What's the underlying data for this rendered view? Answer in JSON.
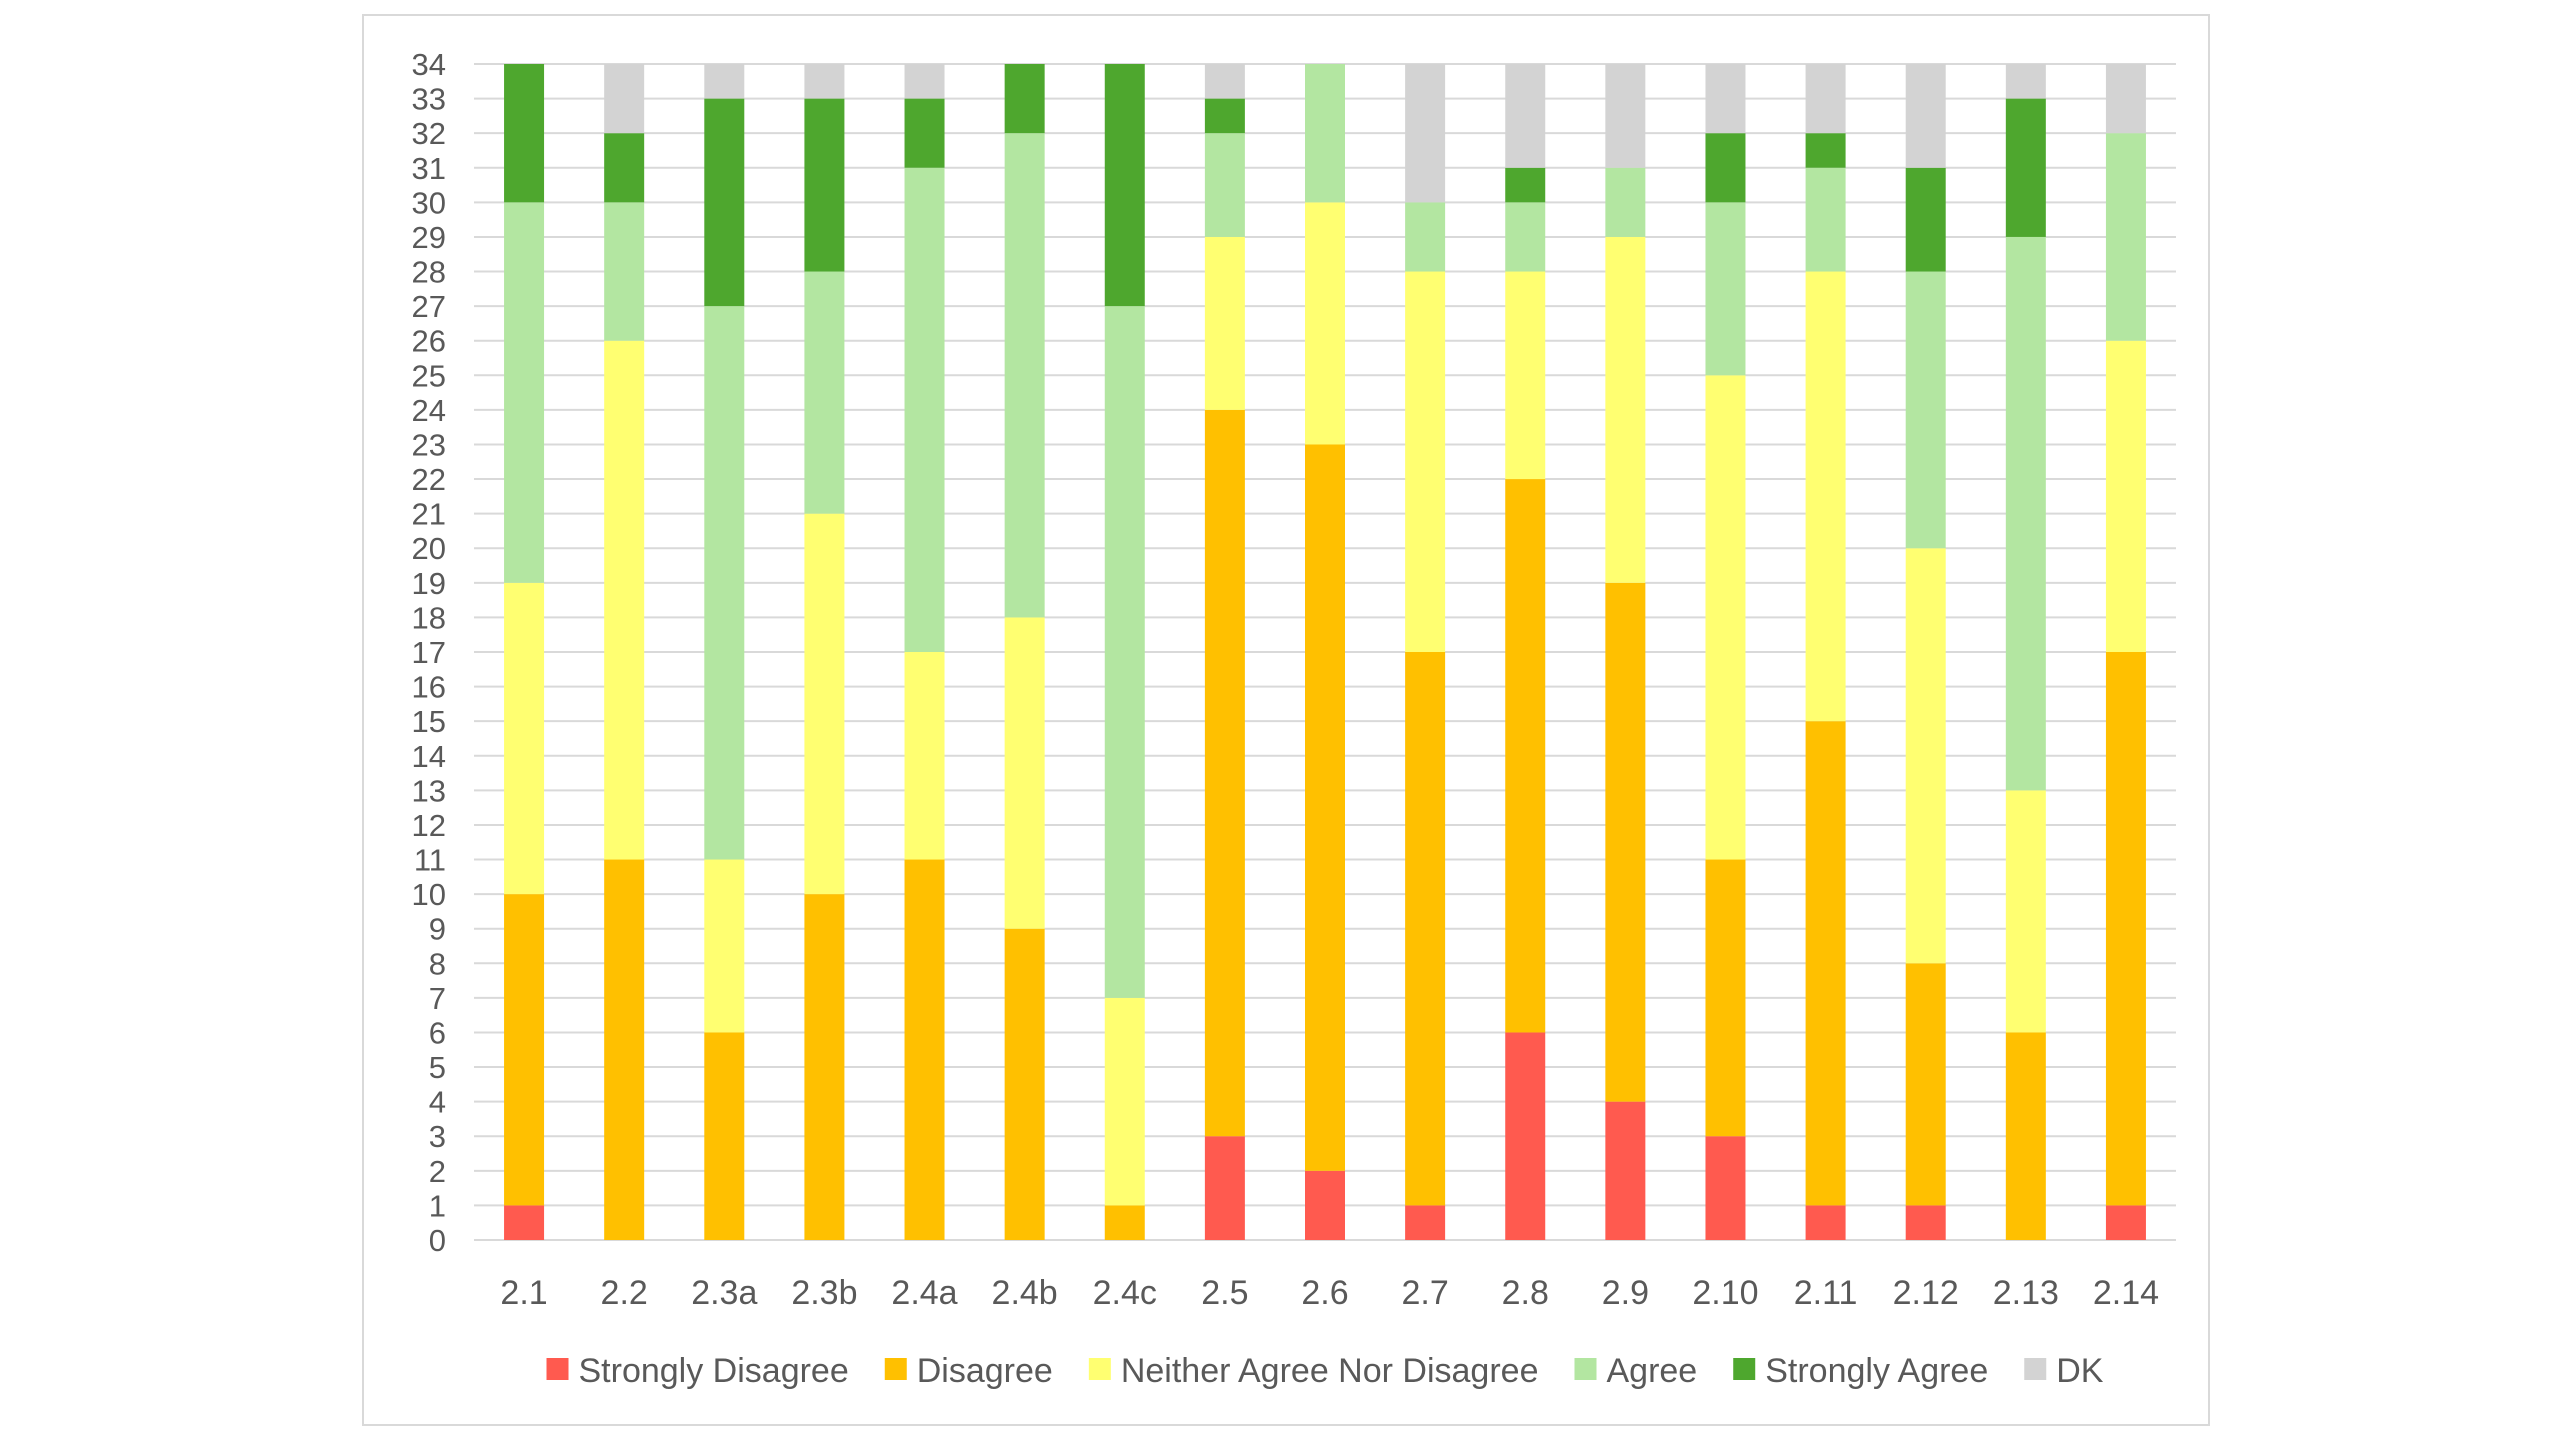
{
  "chart_data": {
    "type": "bar",
    "stacked": true,
    "categories": [
      "2.1",
      "2.2",
      "2.3a",
      "2.3b",
      "2.4a",
      "2.4b",
      "2.4c",
      "2.5",
      "2.6",
      "2.7",
      "2.8",
      "2.9",
      "2.10",
      "2.11",
      "2.12",
      "2.13",
      "2.14"
    ],
    "series": [
      {
        "name": "Strongly Disagree",
        "color": "#ff5a4f",
        "values": [
          1,
          0,
          0,
          0,
          0,
          0,
          0,
          3,
          2,
          1,
          6,
          4,
          3,
          1,
          1,
          0,
          1
        ]
      },
      {
        "name": "Disagree",
        "color": "#ffc000",
        "values": [
          9,
          11,
          6,
          10,
          11,
          9,
          1,
          21,
          21,
          16,
          16,
          15,
          8,
          14,
          7,
          6,
          16
        ]
      },
      {
        "name": "Neither Agree Nor Disagree",
        "color": "#ffff71",
        "values": [
          9,
          15,
          5,
          11,
          6,
          9,
          6,
          5,
          7,
          11,
          6,
          10,
          14,
          13,
          12,
          7,
          9
        ]
      },
      {
        "name": "Agree",
        "color": "#b3e6a1",
        "values": [
          11,
          4,
          16,
          7,
          14,
          14,
          20,
          3,
          4,
          2,
          2,
          2,
          5,
          3,
          8,
          16,
          6
        ]
      },
      {
        "name": "Strongly Agree",
        "color": "#4ea72e",
        "values": [
          4,
          2,
          6,
          5,
          2,
          2,
          7,
          1,
          0,
          0,
          1,
          0,
          2,
          1,
          3,
          4,
          0
        ]
      },
      {
        "name": "DK",
        "color": "#d3d3d3",
        "values": [
          0,
          2,
          1,
          1,
          1,
          0,
          0,
          1,
          0,
          4,
          3,
          3,
          2,
          2,
          3,
          1,
          2
        ]
      }
    ],
    "ylim": [
      0,
      34
    ],
    "y_ticks": [
      "0",
      "1",
      "2",
      "3",
      "4",
      "5",
      "6",
      "7",
      "8",
      "9",
      "10",
      "11",
      "12",
      "13",
      "14",
      "15",
      "16",
      "17",
      "18",
      "19",
      "20",
      "21",
      "22",
      "23",
      "24",
      "25",
      "26",
      "27",
      "28",
      "29",
      "30",
      "31",
      "32",
      "33",
      "34"
    ],
    "grid": true,
    "legend_position": "bottom"
  }
}
